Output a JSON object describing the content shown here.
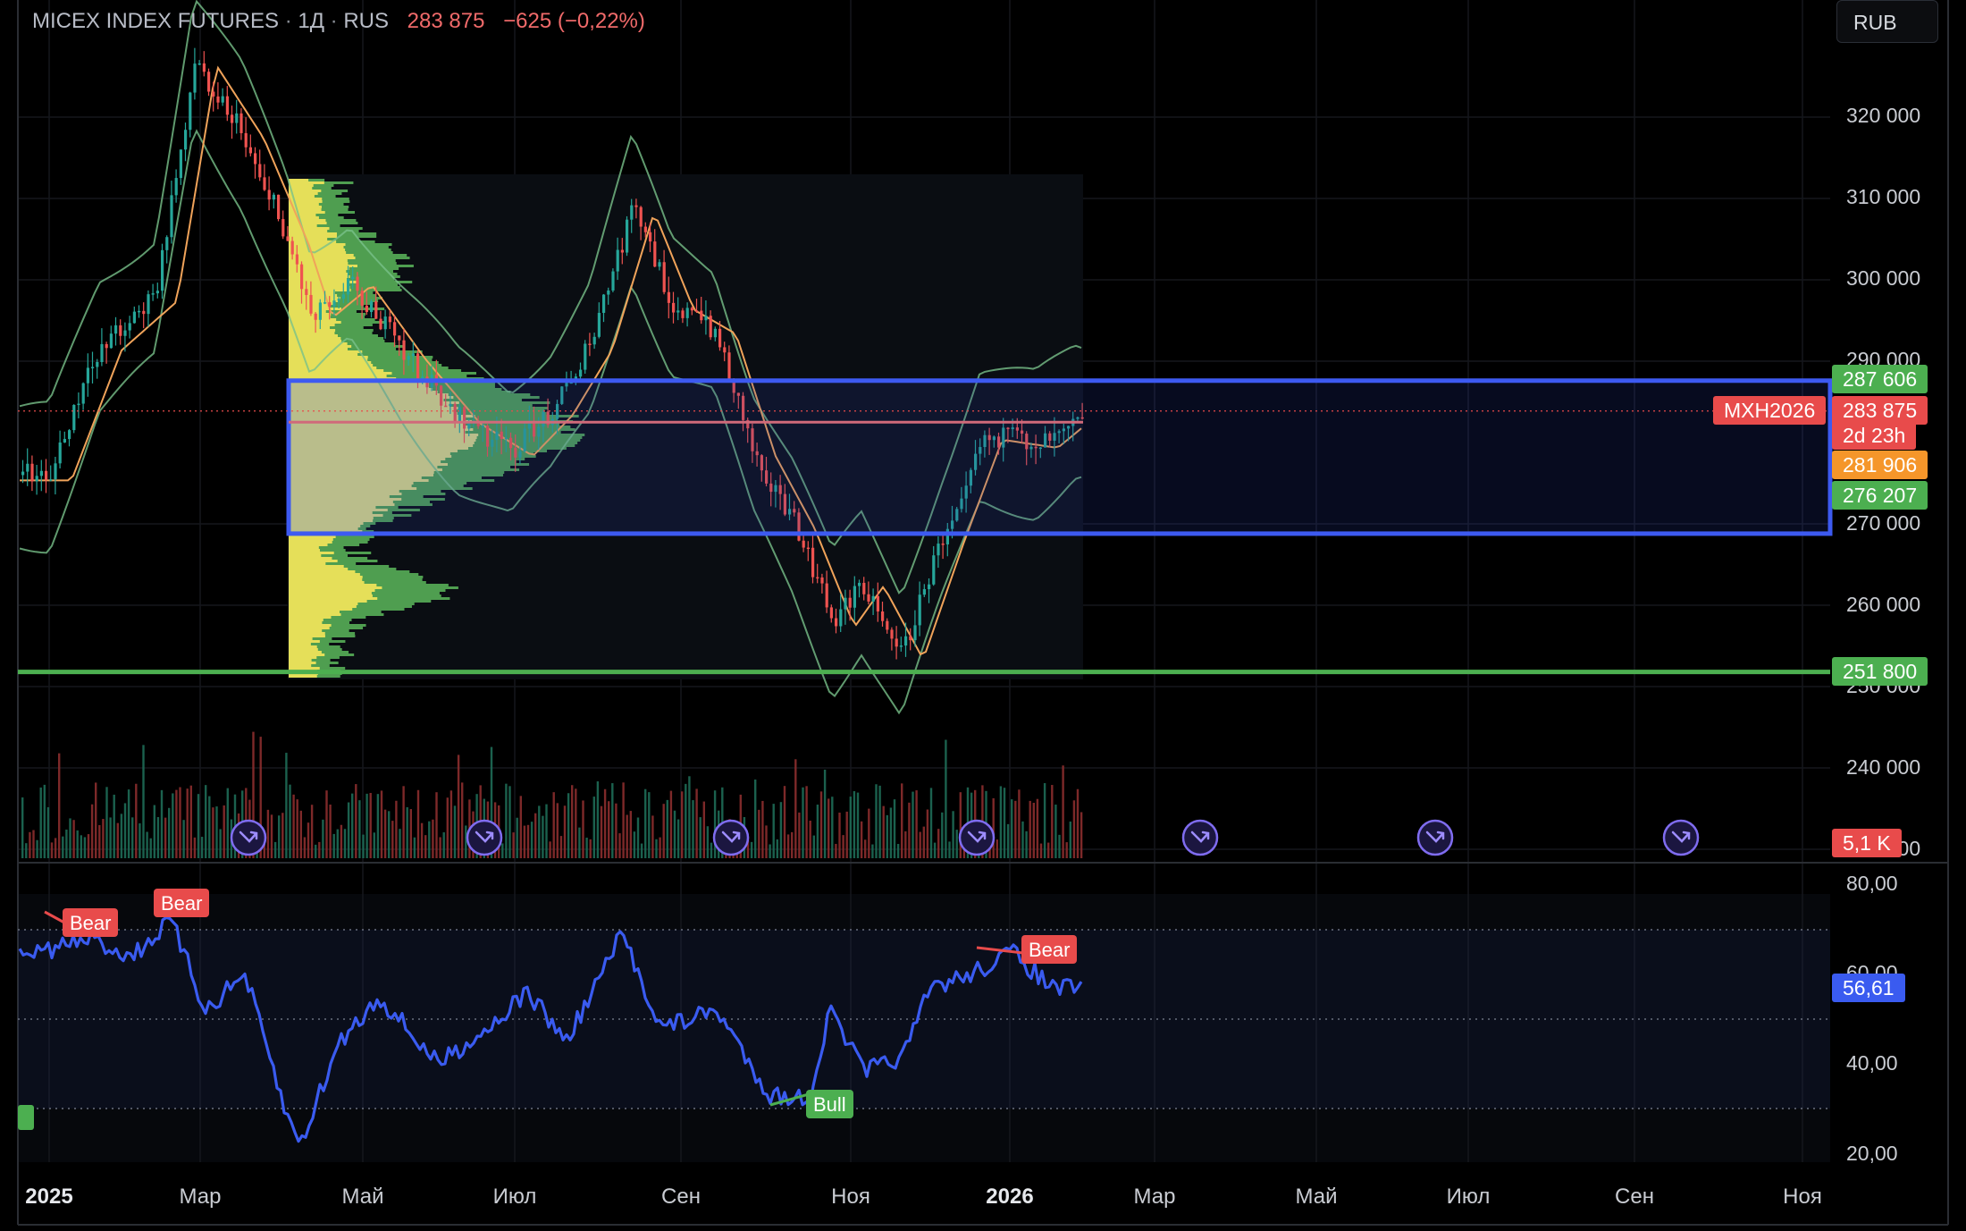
{
  "header": {
    "symbol": "MICEX INDEX FUTURES",
    "interval": "1Д",
    "exchange": "RUS",
    "last": "283 875",
    "change": "−625 (−0,22%)"
  },
  "currency_button": "RUB",
  "price_labels": {
    "upper_green": "287 606",
    "ticker": "MXH2026",
    "last": "283 875",
    "countdown": "2d 23h",
    "orange": "281 906",
    "lower_green": "276 207",
    "support": "251 800",
    "volume": "5,1 K",
    "rsi": "56,61"
  },
  "y_axis_ticks": [
    "320 000",
    "310 000",
    "300 000",
    "290 000",
    "270 000",
    "260 000",
    "250 000",
    "240 000",
    "230 000"
  ],
  "rsi_axis_ticks": [
    "80,00",
    "60,00",
    "40,00",
    "20,00"
  ],
  "x_axis_ticks": [
    {
      "label": "2025",
      "bold": true
    },
    {
      "label": "Мар",
      "bold": false
    },
    {
      "label": "Май",
      "bold": false
    },
    {
      "label": "Июл",
      "bold": false
    },
    {
      "label": "Сен",
      "bold": false
    },
    {
      "label": "Ноя",
      "bold": false
    },
    {
      "label": "2026",
      "bold": true
    },
    {
      "label": "Мар",
      "bold": false
    },
    {
      "label": "Май",
      "bold": false
    },
    {
      "label": "Июл",
      "bold": false
    },
    {
      "label": "Сен",
      "bold": false
    },
    {
      "label": "Ноя",
      "bold": false
    }
  ],
  "divergence_labels": [
    "Bear",
    "Bear",
    "Bear",
    "Bull"
  ],
  "colors": {
    "up": "#26a69a",
    "down": "#ef5350",
    "box": "#3d5af1",
    "support": "#4caf50",
    "rsi": "#3a5bf0",
    "bollinger": "#78c08a",
    "ma": "#f0a35a",
    "profile_value_area": "#f5e65a",
    "profile_outside": "#5cb85c"
  },
  "chart_data": {
    "type": "candlestick",
    "instrument": "MXH2026",
    "y_price_range": [
      226000,
      327000
    ],
    "rsi_range": [
      15,
      85
    ],
    "rsi_levels": [
      70,
      50,
      30
    ],
    "close_path": [
      {
        "x": "2025-01-01",
        "close": 276000
      },
      {
        "x": "2025-01-20",
        "close": 292000
      },
      {
        "x": "2025-02-10",
        "close": 298000
      },
      {
        "x": "2025-02-25",
        "close": 327000
      },
      {
        "x": "2025-03-15",
        "close": 318000
      },
      {
        "x": "2025-04-01",
        "close": 305000
      },
      {
        "x": "2025-04-10",
        "close": 296000
      },
      {
        "x": "2025-04-25",
        "close": 300000
      },
      {
        "x": "2025-05-15",
        "close": 291000
      },
      {
        "x": "2025-06-05",
        "close": 283000
      },
      {
        "x": "2025-06-25",
        "close": 279000
      },
      {
        "x": "2025-07-10",
        "close": 284000
      },
      {
        "x": "2025-07-25",
        "close": 292000
      },
      {
        "x": "2025-08-10",
        "close": 309000
      },
      {
        "x": "2025-08-25",
        "close": 297000
      },
      {
        "x": "2025-09-10",
        "close": 294000
      },
      {
        "x": "2025-09-25",
        "close": 279000
      },
      {
        "x": "2025-10-10",
        "close": 270000
      },
      {
        "x": "2025-10-25",
        "close": 258000
      },
      {
        "x": "2025-11-05",
        "close": 263000
      },
      {
        "x": "2025-11-20",
        "close": 254000
      },
      {
        "x": "2025-12-05",
        "close": 268000
      },
      {
        "x": "2025-12-20",
        "close": 281000
      },
      {
        "x": "2026-01-10",
        "close": 280000
      },
      {
        "x": "2026-01-25",
        "close": 284000
      },
      {
        "x": "2026-02-03",
        "close": 283875
      }
    ],
    "horizontal_levels": {
      "range_box_top": 287606,
      "range_box_bottom": 268800,
      "support": 251800,
      "point_of_control": 282500
    },
    "rsi_path": [
      {
        "x": "2025-01-01",
        "rsi": 65
      },
      {
        "x": "2025-01-20",
        "rsi": 68
      },
      {
        "x": "2025-02-05",
        "rsi": 64
      },
      {
        "x": "2025-02-20",
        "rsi": 72
      },
      {
        "x": "2025-03-05",
        "rsi": 52
      },
      {
        "x": "2025-03-20",
        "rsi": 60
      },
      {
        "x": "2025-04-05",
        "rsi": 28
      },
      {
        "x": "2025-04-10",
        "rsi": 22
      },
      {
        "x": "2025-04-25",
        "rsi": 45
      },
      {
        "x": "2025-05-10",
        "rsi": 55
      },
      {
        "x": "2025-06-01",
        "rsi": 40
      },
      {
        "x": "2025-06-20",
        "rsi": 48
      },
      {
        "x": "2025-07-05",
        "rsi": 56
      },
      {
        "x": "2025-07-20",
        "rsi": 45
      },
      {
        "x": "2025-08-10",
        "rsi": 69
      },
      {
        "x": "2025-08-25",
        "rsi": 48
      },
      {
        "x": "2025-09-15",
        "rsi": 52
      },
      {
        "x": "2025-10-05",
        "rsi": 33
      },
      {
        "x": "2025-10-20",
        "rsi": 32
      },
      {
        "x": "2025-10-28",
        "rsi": 52
      },
      {
        "x": "2025-11-10",
        "rsi": 38
      },
      {
        "x": "2025-11-25",
        "rsi": 42
      },
      {
        "x": "2025-12-05",
        "rsi": 57
      },
      {
        "x": "2025-12-20",
        "rsi": 60
      },
      {
        "x": "2026-01-05",
        "rsi": 65
      },
      {
        "x": "2026-01-20",
        "rsi": 57
      },
      {
        "x": "2026-02-03",
        "rsi": 56.61
      }
    ]
  }
}
